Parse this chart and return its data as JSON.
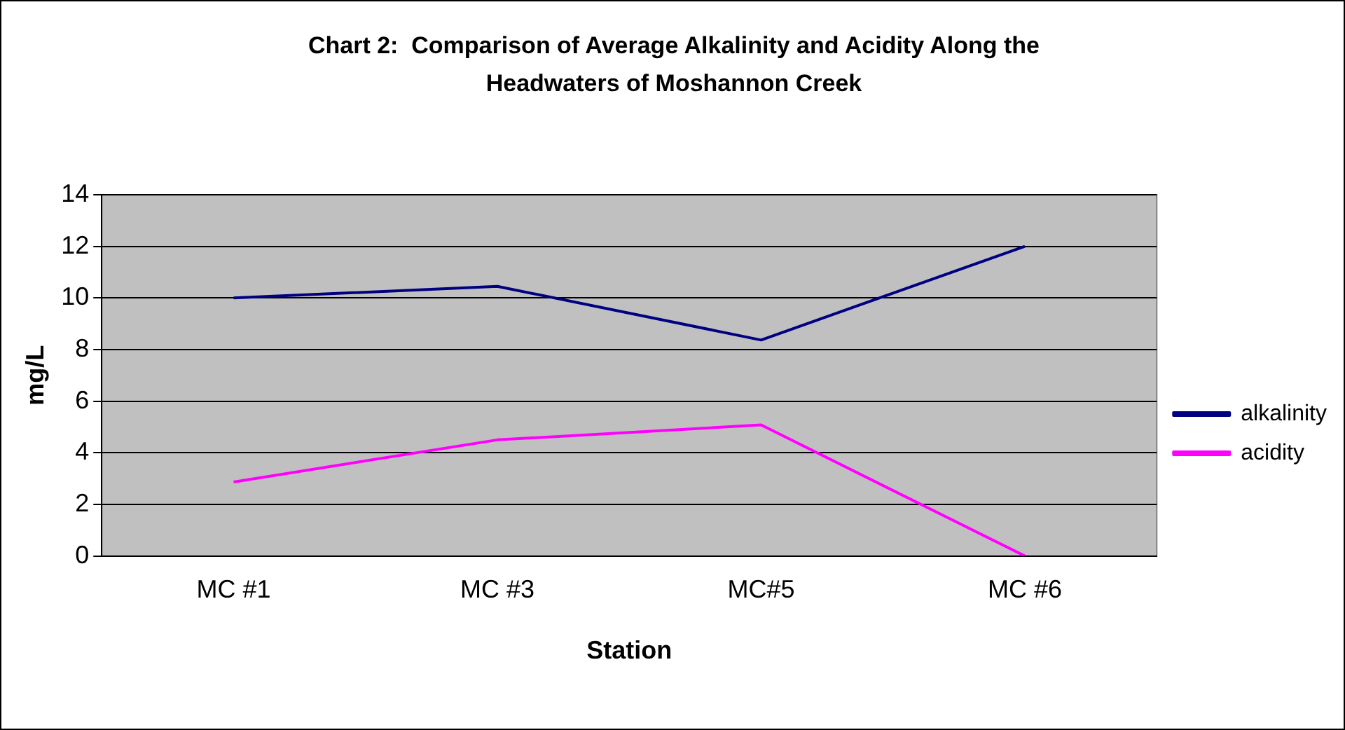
{
  "chart_data": {
    "type": "line",
    "title": "Chart 2:  Comparison of Average Alkalinity and Acidity Along the Headwaters of Moshannon Creek",
    "xlabel": "Station",
    "ylabel": "mg/L",
    "categories": [
      "MC #1",
      "MC #3",
      "MC#5",
      "MC #6"
    ],
    "series": [
      {
        "name": "alkalinity",
        "color": "#000080",
        "values": [
          10,
          10.45,
          8.37,
          12
        ]
      },
      {
        "name": "acidity",
        "color": "#ff00ff",
        "values": [
          2.87,
          4.5,
          5.08,
          0
        ]
      }
    ],
    "ylim": [
      0,
      14
    ],
    "yticks": [
      0,
      2,
      4,
      6,
      8,
      10,
      12,
      14
    ],
    "grid": "y",
    "legend": "right",
    "marker": "none"
  }
}
